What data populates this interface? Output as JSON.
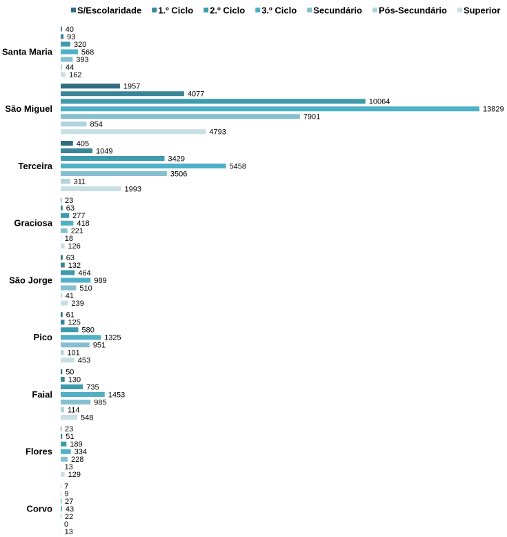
{
  "chart_data": {
    "type": "bar",
    "orientation": "horizontal",
    "categories": [
      "Santa Maria",
      "São Miguel",
      "Terceira",
      "Graciosa",
      "São Jorge",
      "Pico",
      "Faial",
      "Flores",
      "Corvo"
    ],
    "series": [
      {
        "name": "S/Escolaridade",
        "color": "#2e6e7e",
        "values": [
          40,
          1957,
          405,
          23,
          63,
          61,
          50,
          23,
          7
        ]
      },
      {
        "name": "1.º Ciclo",
        "color": "#3a8598",
        "values": [
          93,
          4077,
          1049,
          63,
          132,
          125,
          130,
          51,
          9
        ]
      },
      {
        "name": "2.º Ciclo",
        "color": "#3e9aad",
        "values": [
          320,
          10064,
          3429,
          277,
          464,
          580,
          735,
          189,
          27
        ]
      },
      {
        "name": "3.º Ciclo",
        "color": "#4fb0c6",
        "values": [
          568,
          13829,
          5458,
          418,
          989,
          1325,
          1453,
          334,
          43
        ]
      },
      {
        "name": "Secundário",
        "color": "#85bfcf",
        "values": [
          393,
          7901,
          3506,
          221,
          510,
          951,
          985,
          228,
          22
        ]
      },
      {
        "name": "Pós-Secundário",
        "color": "#aed4de",
        "values": [
          44,
          854,
          311,
          18,
          41,
          101,
          114,
          13,
          0
        ]
      },
      {
        "name": "Superior",
        "color": "#c9dfe6",
        "values": [
          162,
          4793,
          1993,
          126,
          239,
          453,
          548,
          129,
          13
        ]
      }
    ],
    "legend": "top"
  }
}
